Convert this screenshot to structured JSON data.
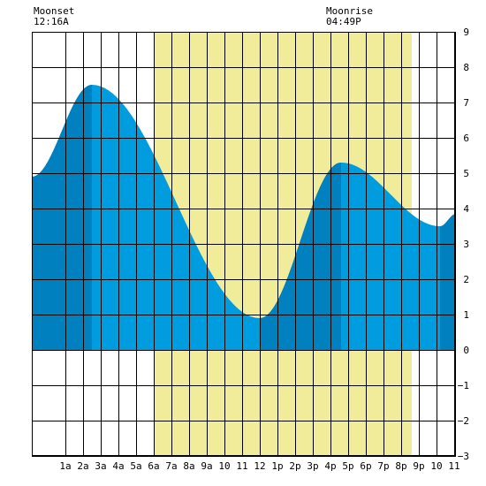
{
  "header": {
    "moonset_label": "Moonset",
    "moonset_time": "12:16A",
    "moonrise_label": "Moonrise",
    "moonrise_time": "04:49P"
  },
  "colors": {
    "daylight": "#f0ec9a",
    "tide_light": "#009ce0",
    "tide_dark": "#0080bf",
    "grid": "#000000"
  },
  "chart_data": {
    "type": "area",
    "title": "",
    "xlabel": "",
    "ylabel": "",
    "xlim": [
      -0.9,
      23.1
    ],
    "ylim": [
      -3,
      9
    ],
    "x_ticks": [
      {
        "x": 1,
        "label": "1a"
      },
      {
        "x": 2,
        "label": "2a"
      },
      {
        "x": 3,
        "label": "3a"
      },
      {
        "x": 4,
        "label": "4a"
      },
      {
        "x": 5,
        "label": "5a"
      },
      {
        "x": 6,
        "label": "6a"
      },
      {
        "x": 7,
        "label": "7a"
      },
      {
        "x": 8,
        "label": "8a"
      },
      {
        "x": 9,
        "label": "9a"
      },
      {
        "x": 10,
        "label": "10"
      },
      {
        "x": 11,
        "label": "11"
      },
      {
        "x": 12,
        "label": "12"
      },
      {
        "x": 13,
        "label": "1p"
      },
      {
        "x": 14,
        "label": "2p"
      },
      {
        "x": 15,
        "label": "3p"
      },
      {
        "x": 16,
        "label": "4p"
      },
      {
        "x": 17,
        "label": "5p"
      },
      {
        "x": 18,
        "label": "6p"
      },
      {
        "x": 19,
        "label": "7p"
      },
      {
        "x": 20,
        "label": "8p"
      },
      {
        "x": 21,
        "label": "9p"
      },
      {
        "x": 22,
        "label": "10"
      },
      {
        "x": 23,
        "label": "11"
      }
    ],
    "y_ticks": [
      -3,
      -2,
      -1,
      0,
      1,
      2,
      3,
      4,
      5,
      6,
      7,
      8,
      9
    ],
    "daylight": {
      "start": 6.0,
      "end": 20.6
    },
    "extremes": [
      {
        "time": -0.9,
        "height": 4.9
      },
      {
        "time": 2.5,
        "height": 7.5
      },
      {
        "time": 12.0,
        "height": 0.9
      },
      {
        "time": 16.6,
        "height": 5.3
      },
      {
        "time": 22.2,
        "height": 3.5
      },
      {
        "time": 23.1,
        "height": 3.85
      }
    ],
    "shaded_segments": [
      {
        "start": -0.9,
        "end": 2.5
      },
      {
        "start": 12.0,
        "end": 16.6
      },
      {
        "start": 22.2,
        "end": 23.1
      }
    ],
    "grid": true
  }
}
